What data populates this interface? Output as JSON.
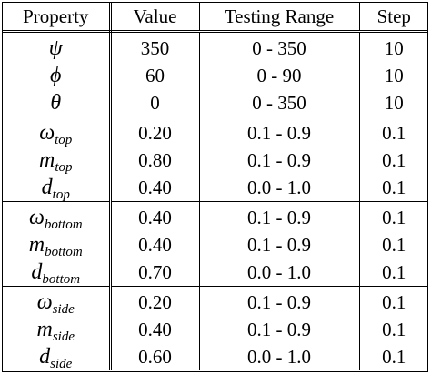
{
  "table": {
    "headers": [
      "Property",
      "Value",
      "Testing Range",
      "Step"
    ],
    "groups": [
      {
        "rows": [
          {
            "symbol": "ψ",
            "sub": "",
            "value": "350",
            "range": "0 - 350",
            "step": "10"
          },
          {
            "symbol": "ϕ",
            "sub": "",
            "value": "60",
            "range": "0 - 90",
            "step": "10"
          },
          {
            "symbol": "θ",
            "sub": "",
            "value": "0",
            "range": "0 - 350",
            "step": "10"
          }
        ]
      },
      {
        "rows": [
          {
            "symbol": "ω",
            "sub": "top",
            "value": "0.20",
            "range": "0.1 - 0.9",
            "step": "0.1"
          },
          {
            "symbol": "m",
            "sub": "top",
            "value": "0.80",
            "range": "0.1 - 0.9",
            "step": "0.1"
          },
          {
            "symbol": "d",
            "sub": "top",
            "value": "0.40",
            "range": "0.0 - 1.0",
            "step": "0.1"
          }
        ]
      },
      {
        "rows": [
          {
            "symbol": "ω",
            "sub": "bottom",
            "value": "0.40",
            "range": "0.1 - 0.9",
            "step": "0.1"
          },
          {
            "symbol": "m",
            "sub": "bottom",
            "value": "0.40",
            "range": "0.1 - 0.9",
            "step": "0.1"
          },
          {
            "symbol": "d",
            "sub": "bottom",
            "value": "0.70",
            "range": "0.0 - 1.0",
            "step": "0.1"
          }
        ]
      },
      {
        "rows": [
          {
            "symbol": "ω",
            "sub": "side",
            "value": "0.20",
            "range": "0.1 - 0.9",
            "step": "0.1"
          },
          {
            "symbol": "m",
            "sub": "side",
            "value": "0.40",
            "range": "0.1 - 0.9",
            "step": "0.1"
          },
          {
            "symbol": "d",
            "sub": "side",
            "value": "0.60",
            "range": "0.0 - 1.0",
            "step": "0.1"
          }
        ]
      }
    ]
  }
}
